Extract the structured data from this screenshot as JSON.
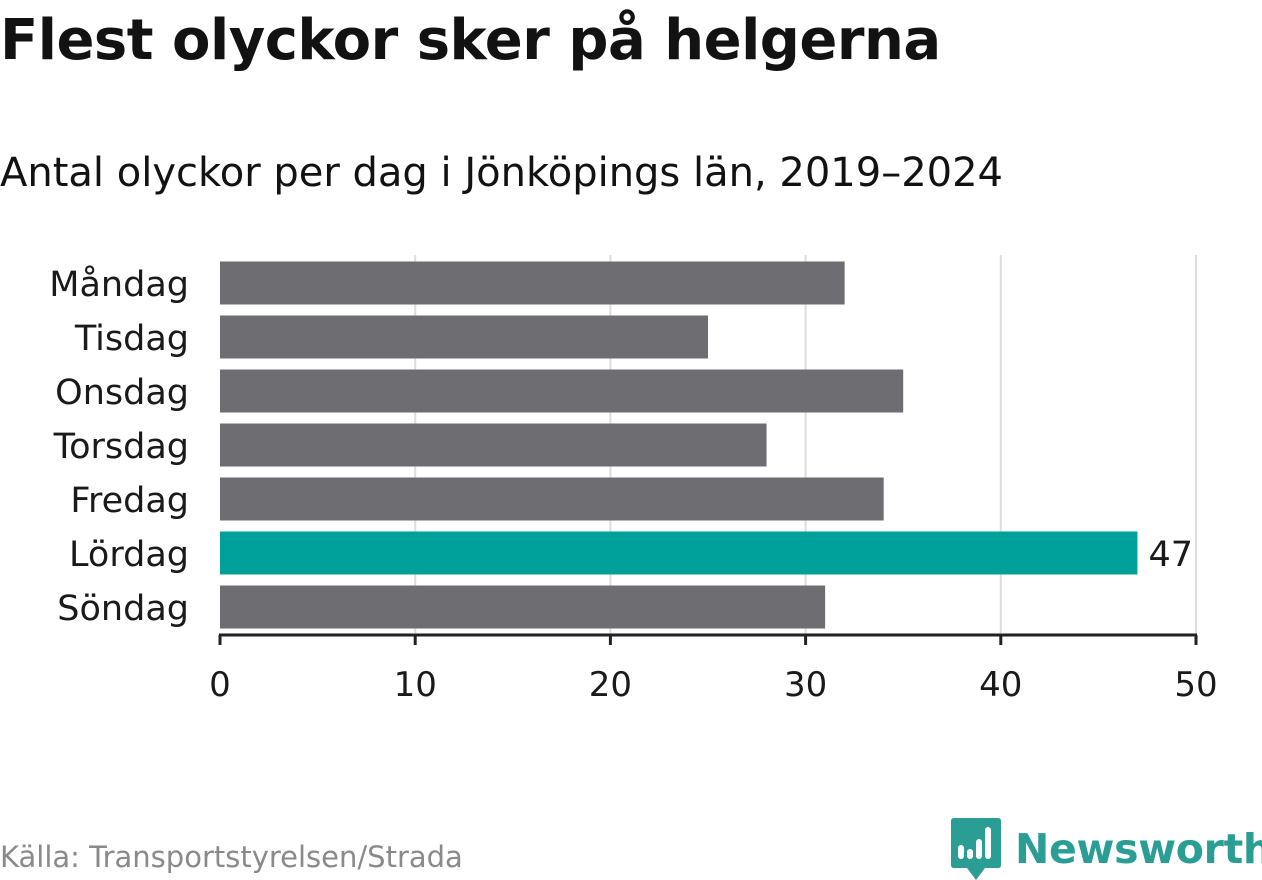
{
  "title": "Flest olyckor sker på helgerna",
  "subtitle": "Antal olyckor per dag i Jönköpings län, 2019–2024",
  "source": "Källa: Transportstyrelsen/Strada",
  "brand": {
    "name": "Newsworthy",
    "icon": "newsworthy-logo-icon",
    "color": "#2a9d95"
  },
  "colors": {
    "bar": "#6e6d72",
    "highlight": "#00a19a",
    "grid": "#dddddd",
    "axis": "#222222"
  },
  "chart_data": {
    "type": "bar",
    "orientation": "horizontal",
    "categories": [
      "Måndag",
      "Tisdag",
      "Onsdag",
      "Torsdag",
      "Fredag",
      "Lördag",
      "Söndag"
    ],
    "values": [
      32,
      25,
      35,
      28,
      34,
      47,
      31
    ],
    "highlight_index": 5,
    "data_labels": [
      {
        "category": "Lördag",
        "label": "47"
      }
    ],
    "xlim": [
      0,
      50
    ],
    "xticks": [
      "0",
      "10",
      "20",
      "30",
      "40",
      "50"
    ],
    "xlabel": "",
    "ylabel": "",
    "grid": true,
    "legend": "none"
  }
}
